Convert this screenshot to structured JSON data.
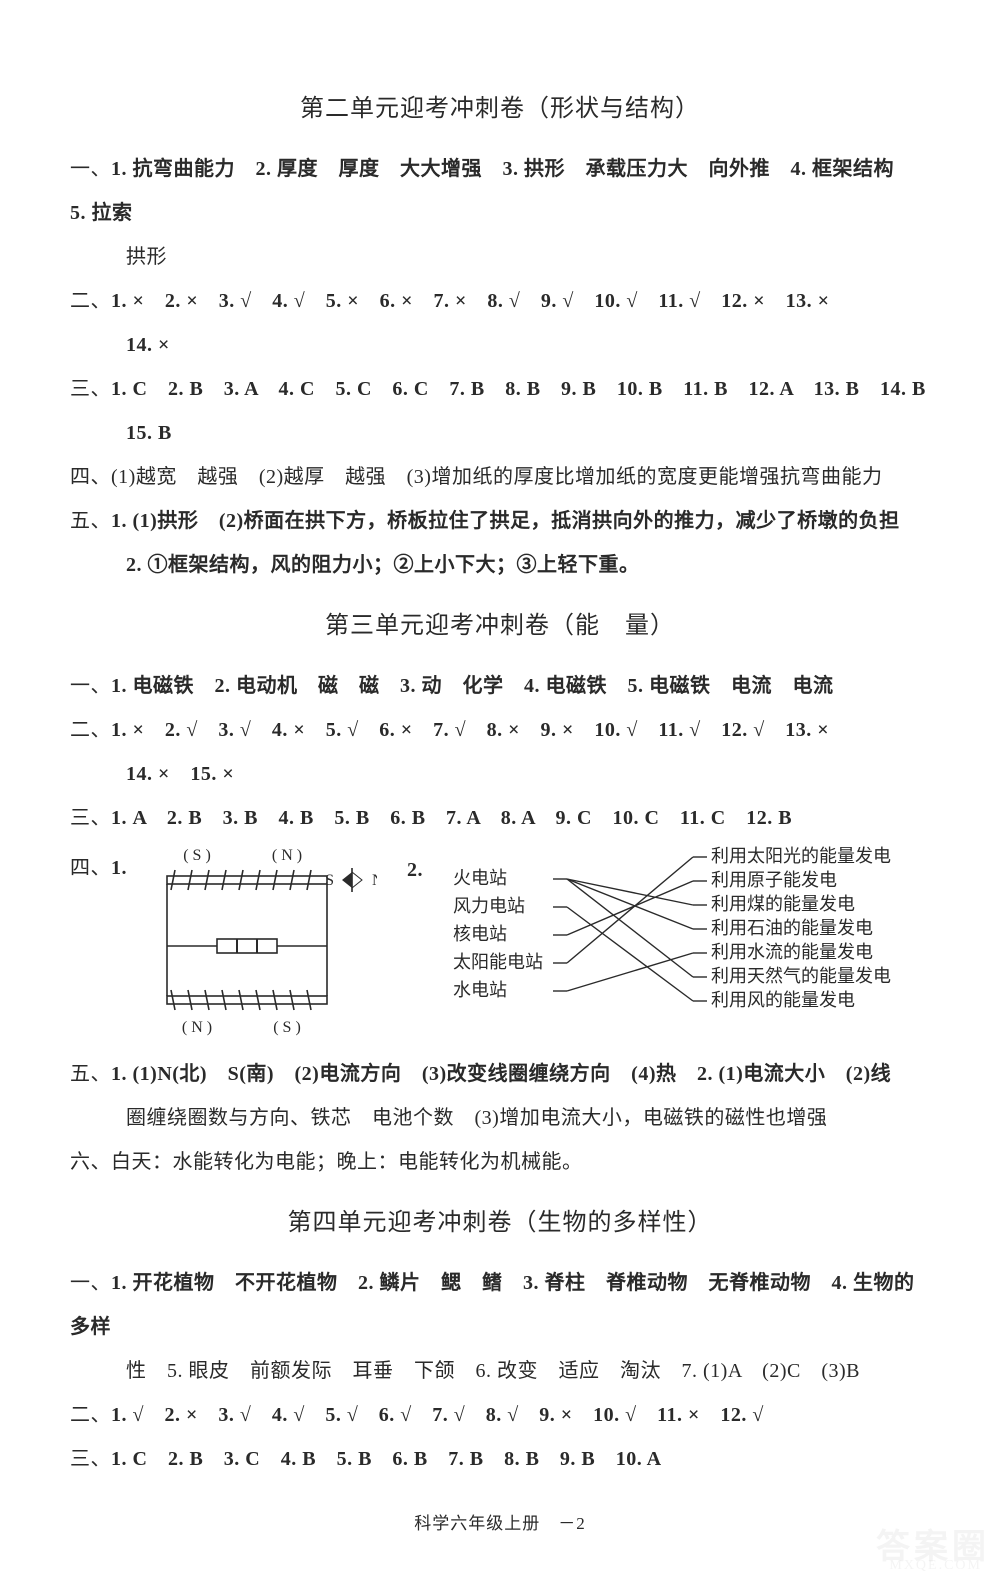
{
  "page": {
    "footer": "科学六年级上册　－2",
    "watermark": "答案圈",
    "watermark_sub": "MXQE.COM"
  },
  "unit2": {
    "title_main": "第二单元迎考冲刺卷",
    "title_sub": "（形状与结构）",
    "sec1_label": "一、",
    "sec1_line1": "1. 抗弯曲能力　2. 厚度　厚度　大大增强　3. 拱形　承载压力大　向外推　4. 框架结构　5. 拉索",
    "sec1_line2": "拱形",
    "sec2_label": "二、",
    "sec2_line1": "1. ×　2. ×　3. √　4. √　5. ×　6. ×　7. ×　8. √　9. √　10. √　11. √　12. ×　13. ×",
    "sec2_line2": "14. ×",
    "sec3_label": "三、",
    "sec3_line1": "1. C　2. B　3. A　4. C　5. C　6. C　7. B　8. B　9. B　10. B　11. B　12. A　13. B　14. B",
    "sec3_line2": "15. B",
    "sec4_label": "四、",
    "sec4_line1": "(1)越宽　越强　(2)越厚　越强　(3)增加纸的厚度比增加纸的宽度更能增强抗弯曲能力",
    "sec5_label": "五、",
    "sec5_line1": "1. (1)拱形　(2)桥面在拱下方，桥板拉住了拱足，抵消拱向外的推力，减少了桥墩的负担",
    "sec5_line2": "2. ①框架结构，风的阻力小；②上小下大；③上轻下重。"
  },
  "unit3": {
    "title_main": "第三单元迎考冲刺卷",
    "title_sub": "（能　量）",
    "sec1_label": "一、",
    "sec1_line1": "1. 电磁铁　2. 电动机　磁　磁　3. 动　化学　4. 电磁铁　5. 电磁铁　电流　电流",
    "sec2_label": "二、",
    "sec2_line1": "1. ×　2. √　3. √　4. ×　5. √　6. ×　7. √　8. ×　9. ×　10. √　11. √　12. √　13. ×",
    "sec2_line2": "14. ×　15. ×",
    "sec3_label": "三、",
    "sec3_line1": "1. A　2. B　3. B　4. B　5. B　6. B　7. A　8. A　9. C　10. C　11. C　12. B",
    "sec4_label": "四、",
    "sec4_q1_prefix": "1.",
    "diagram1": {
      "top_left": "( S )",
      "top_right": "( N )",
      "bottom_left": "( N )",
      "bottom_right": "( S )",
      "compass_s": "S",
      "compass_n": "N",
      "stroke": "#2a2a2a"
    },
    "sec4_q2_prefix": "2.",
    "match": {
      "left": [
        "火电站",
        "风力电站",
        "核电站",
        "太阳能电站",
        "水电站"
      ],
      "right": [
        "利用太阳光的能量发电",
        "利用原子能发电",
        "利用煤的能量发电",
        "利用石油的能量发电",
        "利用水流的能量发电",
        "利用天然气的能量发电",
        "利用风的能量发电"
      ],
      "edges": [
        [
          0,
          2
        ],
        [
          0,
          3
        ],
        [
          0,
          5
        ],
        [
          1,
          6
        ],
        [
          2,
          1
        ],
        [
          3,
          0
        ],
        [
          4,
          4
        ]
      ],
      "stroke": "#2a2a2a",
      "fontsize": 18
    },
    "sec5_label": "五、",
    "sec5_line1": "1. (1)N(北)　S(南)　(2)电流方向　(3)改变线圈缠绕方向　(4)热　2. (1)电流大小　(2)线",
    "sec5_line2": "圈缠绕圈数与方向、铁芯　电池个数　(3)增加电流大小，电磁铁的磁性也增强",
    "sec6_label": "六、",
    "sec6_line1": "白天：水能转化为电能；晚上：电能转化为机械能。"
  },
  "unit4": {
    "title_main": "第四单元迎考冲刺卷",
    "title_sub": "（生物的多样性）",
    "sec1_label": "一、",
    "sec1_line1": "1. 开花植物　不开花植物　2. 鳞片　鳃　鳍　3. 脊柱　脊椎动物　无脊椎动物　4. 生物的多样",
    "sec1_line2": "性　5. 眼皮　前额发际　耳垂　下颌　6. 改变　适应　淘汰　7. (1)A　(2)C　(3)B",
    "sec2_label": "二、",
    "sec2_line1": "1. √　2. ×　3. √　4. √　5. √　6. √　7. √　8. √　9. ×　10. √　11. ×　12. √",
    "sec3_label": "三、",
    "sec3_line1": "1. C　2. B　3. C　4. B　5. B　6. B　7. B　8. B　9. B　10. A"
  }
}
